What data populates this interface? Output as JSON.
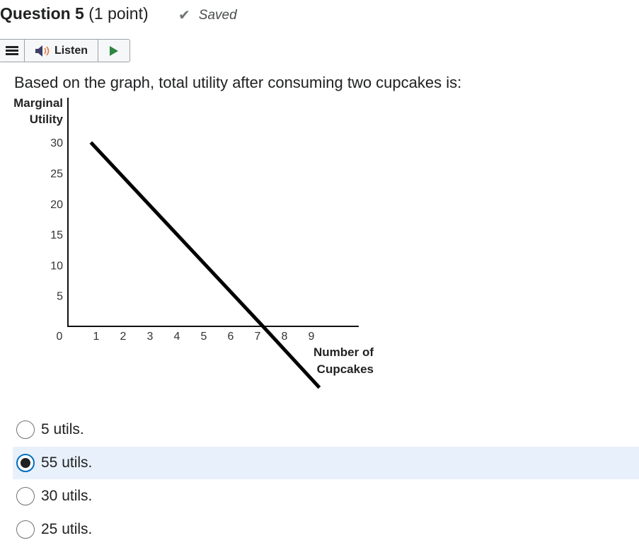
{
  "header": {
    "question_label": "Question 5",
    "points": "(1 point)",
    "saved_label": "Saved",
    "check_icon": "checkmark-icon"
  },
  "toolbar": {
    "listen_label": "Listen",
    "icons": [
      "menu-icon",
      "speaker-icon",
      "play-icon"
    ],
    "play_color": "#2e8540"
  },
  "question": {
    "prompt": "Based on the graph, total utility after consuming two cupcakes is:"
  },
  "chart_data": {
    "type": "line",
    "ylabel": "Marginal Utility",
    "xlabel": "Number of Cupcakes",
    "x_ticks": [
      "1",
      "2",
      "3",
      "4",
      "5",
      "6",
      "7",
      "8",
      "9"
    ],
    "y_ticks": [
      "5",
      "10",
      "15",
      "20",
      "25",
      "30"
    ],
    "origin_label": "0",
    "xlim": [
      0,
      10.5
    ],
    "ylim": [
      -11,
      30
    ],
    "grid": false,
    "series": [
      {
        "points": [
          [
            0.8,
            30
          ],
          [
            7.2,
            0
          ],
          [
            9.3,
            -10
          ]
        ],
        "color": "#000000"
      }
    ]
  },
  "options": [
    {
      "label": "5 utils.",
      "selected": false
    },
    {
      "label": "55 utils.",
      "selected": true
    },
    {
      "label": "30 utils.",
      "selected": false
    },
    {
      "label": "25 utils.",
      "selected": false
    }
  ],
  "colors": {
    "selected_bg": "#e8f1fb",
    "radio_focus": "#006fbf"
  }
}
